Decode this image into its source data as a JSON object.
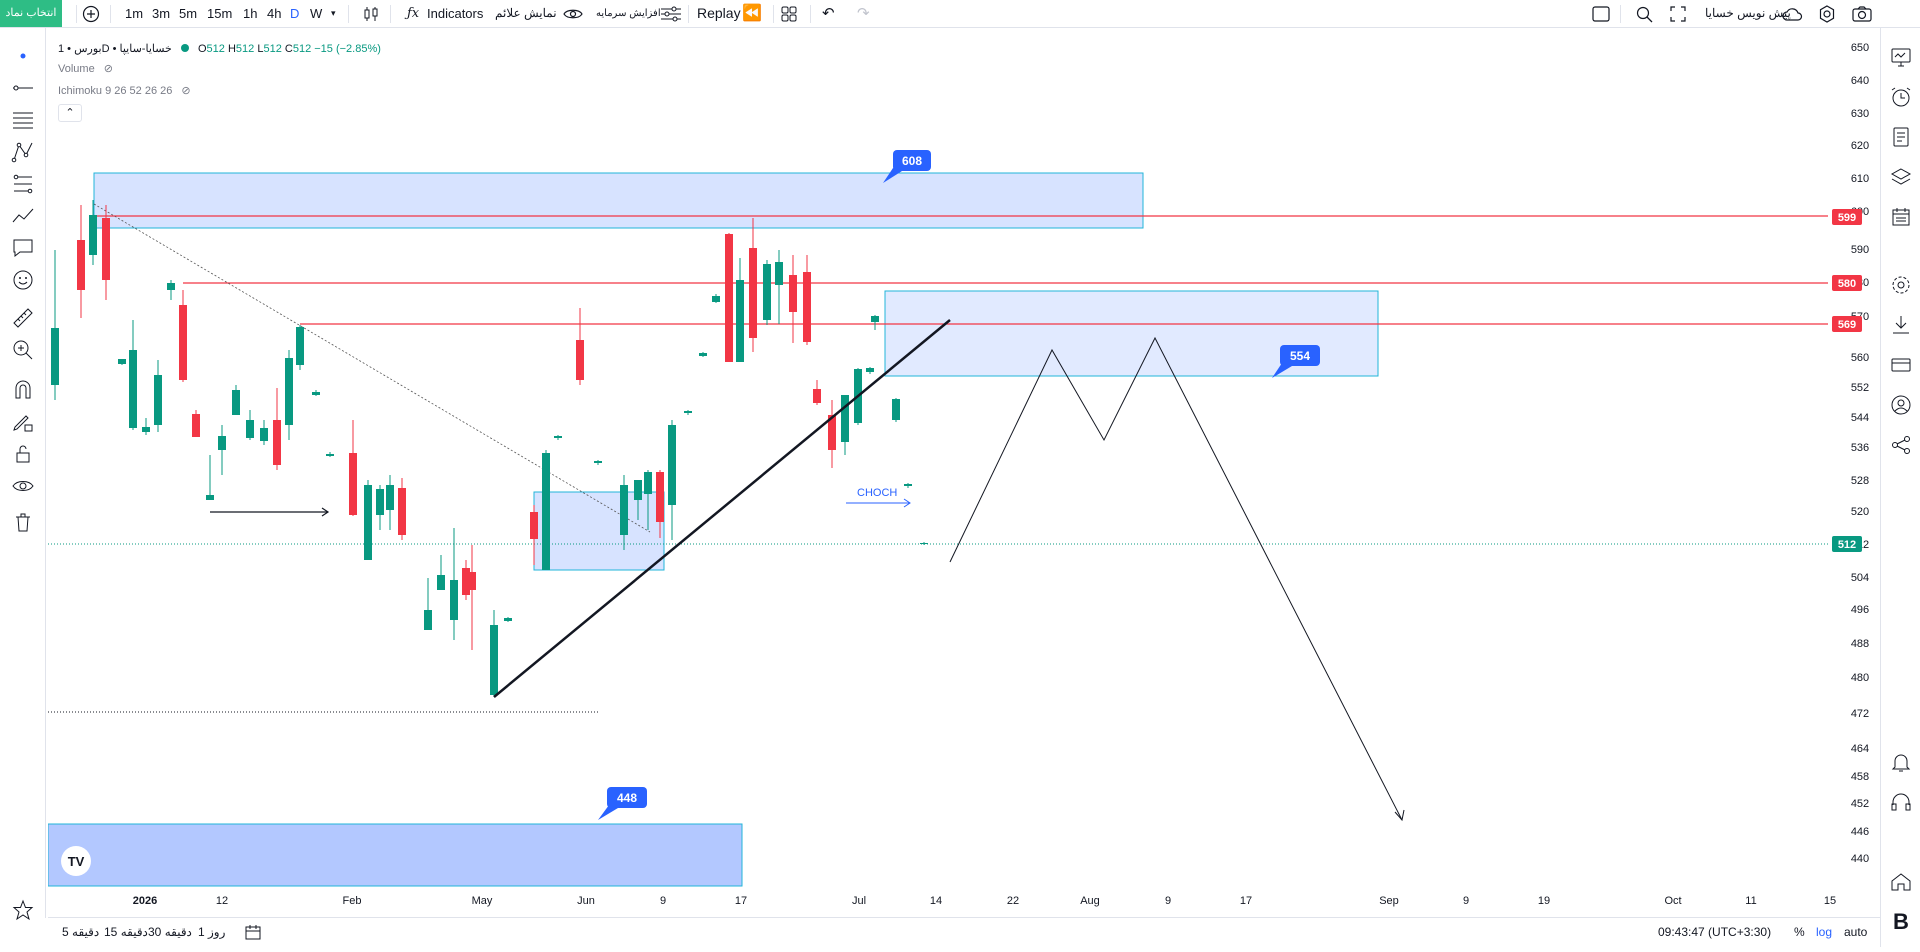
{
  "toolbar": {
    "symbol_button": "انتخاب نماد",
    "intervals": [
      "1m",
      "3m",
      "5m",
      "15m",
      "1h",
      "4h",
      "D",
      "W"
    ],
    "active_interval": "D",
    "indicators": "Indicators",
    "signals": "نمایش علائم",
    "capital": "افزایش سرمایه",
    "replay": "Replay",
    "forecast": "پیش نویس خسایا"
  },
  "legend": {
    "title": "بورس • 1D • خسایا-سایپا",
    "open_label": "O",
    "open": "512",
    "high_label": "H",
    "high": "512",
    "low_label": "L",
    "low": "512",
    "close_label": "C",
    "close": "512",
    "change": "−15 (−2.85%)",
    "volume": "Volume",
    "ichimoku": "Ichimoku 9 26 52 26 26"
  },
  "price_axis": {
    "ticks": [
      "650",
      "640",
      "630",
      "620",
      "610",
      "600",
      "590",
      "580",
      "570",
      "560",
      "552",
      "544",
      "536",
      "528",
      "520",
      "512",
      "504",
      "496",
      "488",
      "480",
      "472",
      "464",
      "458",
      "452",
      "446",
      "440"
    ],
    "labels": [
      {
        "value": "599",
        "color": "#f23645"
      },
      {
        "value": "580",
        "color": "#f23645"
      },
      {
        "value": "569",
        "color": "#f23645"
      },
      {
        "value": "512",
        "color": "#089981"
      }
    ]
  },
  "time_axis": {
    "ticks": [
      "2026",
      "12",
      "Feb",
      "May",
      "Jun",
      "9",
      "17",
      "Jul",
      "14",
      "22",
      "Aug",
      "9",
      "17",
      "Sep",
      "9",
      "19",
      "Oct",
      "11",
      "15"
    ]
  },
  "annotations": {
    "box_top": "608",
    "box_mid": "554",
    "box_bottom": "448",
    "choch": "CHOCH"
  },
  "bottom": {
    "ranges": [
      "5 دقیقه",
      "15 دقیقه",
      "30 دقیقه",
      "1 روز"
    ],
    "clock": "09:43:47 (UTC+3:30)",
    "percent": "%",
    "log": "log",
    "auto": "auto"
  },
  "colors": {
    "up": "#089981",
    "down": "#f23645",
    "accent": "#2962ff",
    "box_fill": "#bcd0ff"
  }
}
